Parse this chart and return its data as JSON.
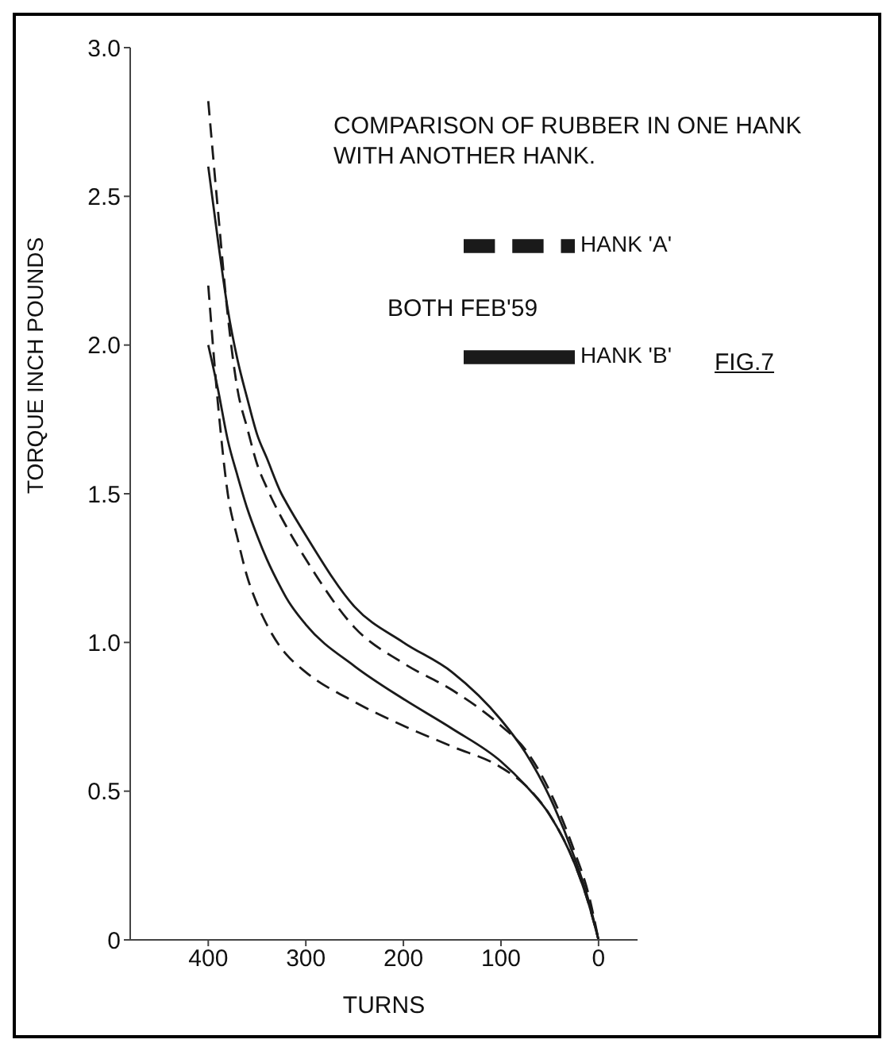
{
  "chart_data": {
    "type": "line",
    "title": "COMPARISON OF RUBBER IN ONE HANK WITH ANOTHER HANK.",
    "xlabel": "TURNS",
    "ylabel": "TORQUE INCH POUNDS",
    "annotations": [
      "BOTH FEB'59",
      "FIG.7"
    ],
    "x": [
      400,
      390,
      380,
      370,
      360,
      350,
      340,
      325,
      320,
      300,
      250,
      200,
      150,
      100,
      75,
      50,
      25,
      10,
      0
    ],
    "series": [
      {
        "name": "HANK 'A'",
        "color": "#1a1a1a",
        "line_style": "dashed",
        "values": [
          2.82,
          2.45,
          2.1,
          1.85,
          1.72,
          1.6,
          1.52,
          1.42,
          1.39,
          1.28,
          1.05,
          0.93,
          0.84,
          0.72,
          0.64,
          0.5,
          0.3,
          0.15,
          0
        ]
      },
      {
        "name": "HANK 'B'",
        "color": "#1a1a1a",
        "line_style": "solid",
        "values": [
          2.6,
          2.35,
          2.12,
          1.95,
          1.82,
          1.7,
          1.62,
          1.5,
          1.47,
          1.36,
          1.12,
          1.0,
          0.9,
          0.74,
          0.63,
          0.48,
          0.28,
          0.13,
          0
        ]
      },
      {
        "color": "#1a1a1a",
        "line_style": "dashed",
        "values": [
          2.2,
          1.8,
          1.5,
          1.35,
          1.22,
          1.13,
          1.06,
          0.98,
          0.96,
          0.9,
          0.8,
          0.72,
          0.65,
          0.58,
          0.52,
          0.42,
          0.26,
          0.12,
          0
        ]
      },
      {
        "color": "#1a1a1a",
        "line_style": "solid",
        "values": [
          2.0,
          1.85,
          1.68,
          1.56,
          1.45,
          1.36,
          1.28,
          1.18,
          1.15,
          1.06,
          0.92,
          0.81,
          0.71,
          0.6,
          0.52,
          0.42,
          0.26,
          0.12,
          0
        ]
      }
    ],
    "xlim": [
      480,
      -40
    ],
    "xticks": [
      400,
      300,
      200,
      100,
      0
    ],
    "ylim": [
      0,
      3
    ],
    "yticks": [
      0,
      0.5,
      {
        "value": 1,
        "label": "1.0"
      },
      1.5,
      {
        "value": 2,
        "label": "2.0"
      },
      2.5,
      {
        "value": 3,
        "label": "3.0"
      }
    ],
    "grid": false,
    "legend": "top right",
    "marker": "none"
  }
}
